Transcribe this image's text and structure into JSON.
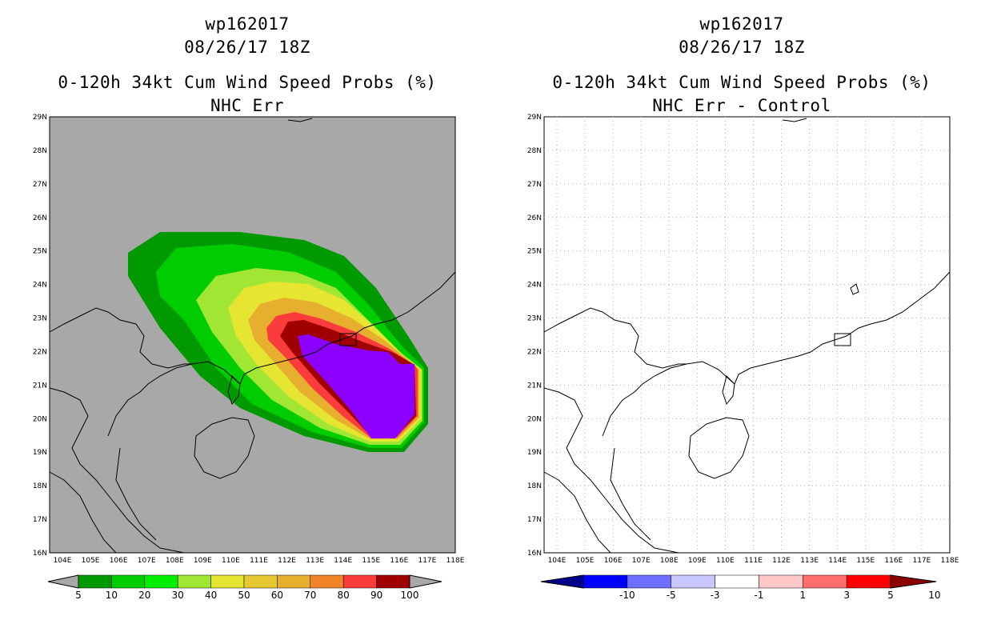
{
  "left_panel": {
    "storm_id": "wp162017",
    "datetime": "08/26/17 18Z",
    "product": "0-120h 34kt Cum Wind Speed Probs (%)",
    "subtitle": "NHC Err",
    "colorbar": {
      "labels": [
        "5",
        "10",
        "20",
        "30",
        "40",
        "50",
        "60",
        "70",
        "80",
        "90",
        "100"
      ],
      "colors": [
        "#009a00",
        "#00cd00",
        "#00ee00",
        "#a0e632",
        "#e6e632",
        "#e6c832",
        "#e6af2d",
        "#f08228",
        "#fa3c3c",
        "#a00000",
        "#8c00ff"
      ]
    }
  },
  "right_panel": {
    "storm_id": "wp162017",
    "datetime": "08/26/17 18Z",
    "product": "0-120h 34kt Cum Wind Speed Probs (%)",
    "subtitle": "NHC Err - Control",
    "colorbar": {
      "labels": [
        "-10",
        "-5",
        "-3",
        "-1",
        "1",
        "3",
        "5",
        "10"
      ],
      "colors": [
        "#00008c",
        "#0000ff",
        "#6e6eff",
        "#c8c8ff",
        "#ffffff",
        "#ffc8c8",
        "#ff6e6e",
        "#ff0000",
        "#8c0000"
      ]
    }
  },
  "axes": {
    "lat_labels": [
      "29N",
      "28N",
      "27N",
      "26N",
      "25N",
      "24N",
      "23N",
      "22N",
      "21N",
      "20N",
      "19N",
      "18N",
      "17N",
      "16N"
    ],
    "lon_labels": [
      "104E",
      "105E",
      "106E",
      "107E",
      "108E",
      "109E",
      "110E",
      "111E",
      "112E",
      "113E",
      "114E",
      "115E",
      "116E",
      "117E",
      "118E"
    ]
  },
  "colors": {
    "map_background": "#a8a8a8",
    "grid": "#b0b0b0"
  }
}
